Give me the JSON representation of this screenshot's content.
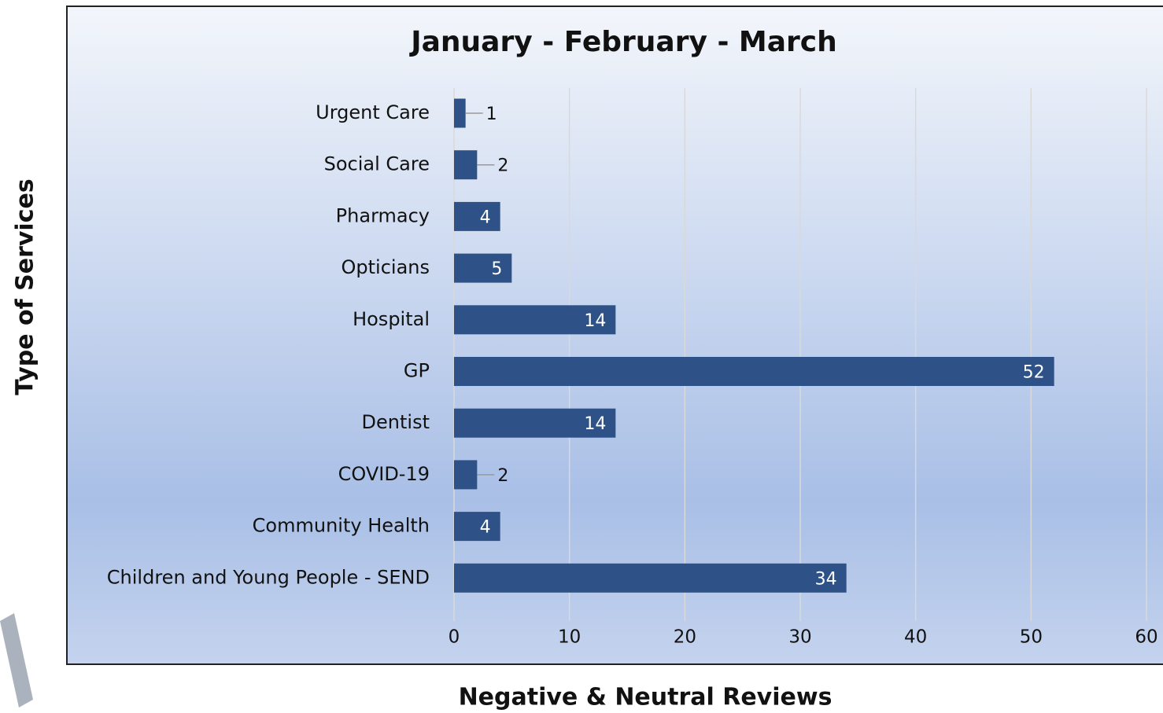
{
  "chart_data": {
    "type": "bar",
    "orientation": "horizontal",
    "title": "January - February - March",
    "x_label": "Negative & Neutral Reviews",
    "y_label": "Type of Services",
    "categories": [
      "Urgent Care",
      "Social Care",
      "Pharmacy",
      "Opticians",
      "Hospital",
      "GP",
      "Dentist",
      "COVID-19",
      "Community Health",
      "Children and Young People - SEND"
    ],
    "values": [
      1,
      2,
      4,
      5,
      14,
      52,
      14,
      2,
      4,
      34
    ],
    "color": "#2e5287",
    "xlim": [
      0,
      60
    ],
    "xticks": [
      0,
      10,
      20,
      30,
      40,
      50,
      60
    ],
    "grid": true
  }
}
